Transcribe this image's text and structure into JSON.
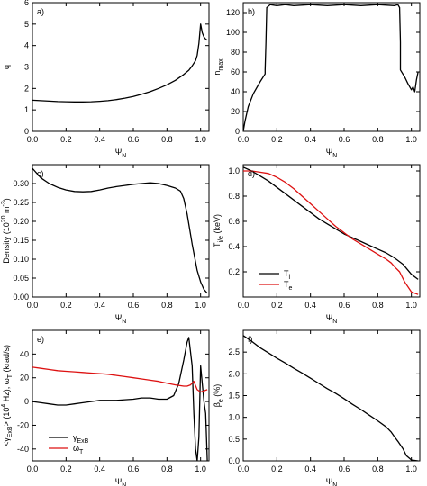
{
  "chart_data": [
    {
      "panel": "a)",
      "type": "line",
      "xlabel": "ΨN",
      "ylabel": "q",
      "xlim": [
        0,
        1.05
      ],
      "ylim": [
        0,
        6
      ],
      "xticks": [
        "0.0",
        "0.2",
        "0.4",
        "0.6",
        "0.8",
        "1.0"
      ],
      "yticks": [
        "0",
        "1",
        "2",
        "3",
        "4",
        "5",
        "6"
      ],
      "series": [
        {
          "color": "#000000",
          "x": [
            0,
            0.05,
            0.1,
            0.15,
            0.2,
            0.25,
            0.3,
            0.35,
            0.4,
            0.45,
            0.5,
            0.55,
            0.6,
            0.65,
            0.7,
            0.75,
            0.8,
            0.85,
            0.9,
            0.93,
            0.95,
            0.97,
            0.98,
            0.99,
            1.0,
            1.01,
            1.02,
            1.03,
            1.04
          ],
          "y": [
            1.45,
            1.43,
            1.41,
            1.39,
            1.38,
            1.37,
            1.37,
            1.38,
            1.4,
            1.43,
            1.48,
            1.55,
            1.63,
            1.73,
            1.85,
            2.0,
            2.17,
            2.38,
            2.65,
            2.85,
            3.05,
            3.3,
            3.55,
            4.1,
            5.0,
            4.6,
            4.4,
            4.3,
            4.25
          ]
        }
      ]
    },
    {
      "panel": "b)",
      "type": "line",
      "xlabel": "ΨN",
      "ylabel": "nmax",
      "xlim": [
        0,
        1.05
      ],
      "ylim": [
        0,
        130
      ],
      "xticks": [
        "0.0",
        "0.2",
        "0.4",
        "0.6",
        "0.8",
        "1.0"
      ],
      "yticks": [
        "0",
        "20",
        "40",
        "60",
        "80",
        "100",
        "120"
      ],
      "series": [
        {
          "color": "#000000",
          "x": [
            0,
            0.01,
            0.03,
            0.06,
            0.1,
            0.13,
            0.13,
            0.135,
            0.14,
            0.16,
            0.2,
            0.25,
            0.3,
            0.4,
            0.5,
            0.6,
            0.7,
            0.8,
            0.9,
            0.92,
            0.93,
            0.935,
            0.935,
            0.96,
            0.98,
            1.0,
            1.01,
            1.02,
            1.03,
            1.04
          ],
          "y": [
            0,
            10,
            25,
            38,
            50,
            58,
            62,
            90,
            125,
            128,
            127,
            128,
            127,
            128,
            127,
            128,
            127,
            128,
            127,
            128,
            125,
            90,
            62,
            55,
            48,
            42,
            45,
            40,
            52,
            60
          ]
        }
      ]
    },
    {
      "panel": "c)",
      "type": "line",
      "xlabel": "ΨN",
      "ylabel": "Density (10^20 m^-3)",
      "xlim": [
        0,
        1.05
      ],
      "ylim": [
        0,
        0.35
      ],
      "xticks": [
        "0.0",
        "0.2",
        "0.4",
        "0.6",
        "0.8",
        "1.0"
      ],
      "yticks": [
        "0.00",
        "0.05",
        "0.10",
        "0.15",
        "0.20",
        "0.25",
        "0.30"
      ],
      "series": [
        {
          "color": "#000000",
          "x": [
            0,
            0.05,
            0.1,
            0.15,
            0.2,
            0.25,
            0.3,
            0.35,
            0.4,
            0.45,
            0.5,
            0.55,
            0.6,
            0.65,
            0.7,
            0.75,
            0.8,
            0.85,
            0.88,
            0.9,
            0.92,
            0.95,
            0.98,
            1.0,
            1.02,
            1.04
          ],
          "y": [
            0.34,
            0.315,
            0.3,
            0.29,
            0.283,
            0.279,
            0.278,
            0.279,
            0.283,
            0.288,
            0.292,
            0.295,
            0.298,
            0.3,
            0.302,
            0.3,
            0.295,
            0.288,
            0.28,
            0.26,
            0.22,
            0.14,
            0.07,
            0.04,
            0.02,
            0.01
          ]
        }
      ]
    },
    {
      "panel": "d)",
      "type": "line",
      "xlabel": "ΨN",
      "ylabel": "Ti/e (keV)",
      "xlim": [
        0,
        1.05
      ],
      "ylim": [
        0,
        1.05
      ],
      "xticks": [
        "0.0",
        "0.2",
        "0.4",
        "0.6",
        "0.8",
        "1.0"
      ],
      "yticks": [
        "0.2",
        "0.4",
        "0.6",
        "0.8",
        "1.0"
      ],
      "legend": [
        "Ti",
        "Te"
      ],
      "series": [
        {
          "name": "Ti",
          "color": "#000000",
          "x": [
            0,
            0.05,
            0.1,
            0.15,
            0.2,
            0.25,
            0.3,
            0.35,
            0.4,
            0.45,
            0.5,
            0.55,
            0.6,
            0.65,
            0.7,
            0.75,
            0.8,
            0.85,
            0.9,
            0.95,
            1.0,
            1.04
          ],
          "y": [
            1.03,
            1.0,
            0.96,
            0.92,
            0.87,
            0.82,
            0.77,
            0.72,
            0.67,
            0.62,
            0.58,
            0.54,
            0.5,
            0.47,
            0.44,
            0.41,
            0.38,
            0.35,
            0.31,
            0.26,
            0.18,
            0.14
          ]
        },
        {
          "name": "Te",
          "color": "#dd1111",
          "x": [
            0,
            0.05,
            0.1,
            0.15,
            0.2,
            0.25,
            0.3,
            0.35,
            0.4,
            0.45,
            0.5,
            0.55,
            0.6,
            0.65,
            0.7,
            0.75,
            0.8,
            0.85,
            0.88,
            0.9,
            0.93,
            0.96,
            1.0,
            1.04
          ],
          "y": [
            1.0,
            1.0,
            0.99,
            0.98,
            0.95,
            0.91,
            0.86,
            0.8,
            0.74,
            0.68,
            0.62,
            0.56,
            0.51,
            0.46,
            0.42,
            0.38,
            0.34,
            0.3,
            0.27,
            0.24,
            0.2,
            0.12,
            0.04,
            0.02
          ]
        }
      ]
    },
    {
      "panel": "e)",
      "type": "line",
      "xlabel": "ΨN",
      "ylabel": "<γExB> (10^4 Hz), ωT (krad/s)",
      "xlim": [
        0,
        1.05
      ],
      "ylim": [
        -50,
        60
      ],
      "xticks": [
        "0.0",
        "0.2",
        "0.4",
        "0.6",
        "0.8",
        "1.0"
      ],
      "yticks": [
        "-40",
        "-20",
        "0",
        "20",
        "40"
      ],
      "legend": [
        "γExB",
        "ωT"
      ],
      "series": [
        {
          "name": "γExB",
          "color": "#000000",
          "x": [
            0,
            0.05,
            0.1,
            0.15,
            0.2,
            0.25,
            0.3,
            0.35,
            0.4,
            0.45,
            0.5,
            0.55,
            0.6,
            0.65,
            0.7,
            0.75,
            0.8,
            0.84,
            0.87,
            0.9,
            0.92,
            0.93,
            0.95,
            0.96,
            0.97,
            0.98,
            0.99,
            1.0,
            1.02,
            1.03,
            1.04
          ],
          "y": [
            0,
            -1,
            -2,
            -3,
            -3,
            -2,
            -1,
            0,
            1,
            1,
            1,
            1.5,
            2,
            3,
            3,
            2,
            2,
            5,
            15,
            35,
            50,
            54,
            30,
            -10,
            -40,
            -50,
            -30,
            30,
            0,
            -10,
            -50
          ]
        },
        {
          "name": "ωT",
          "color": "#dd1111",
          "x": [
            0,
            0.05,
            0.1,
            0.15,
            0.2,
            0.25,
            0.3,
            0.35,
            0.4,
            0.45,
            0.5,
            0.55,
            0.6,
            0.65,
            0.7,
            0.75,
            0.8,
            0.85,
            0.9,
            0.92,
            0.94,
            0.96,
            0.98,
            1.0,
            1.02,
            1.04
          ],
          "y": [
            29,
            28,
            27,
            26,
            25.5,
            25,
            24.5,
            24,
            23.5,
            23,
            22,
            21,
            20,
            19,
            18,
            17,
            15.5,
            14,
            13,
            13,
            14,
            17,
            10,
            8,
            9,
            10
          ]
        }
      ]
    },
    {
      "panel": "f)",
      "type": "line",
      "xlabel": "ΨN",
      "ylabel": "βe (%)",
      "xlim": [
        0,
        1.05
      ],
      "ylim": [
        0,
        3
      ],
      "xticks": [
        "0.0",
        "0.2",
        "0.4",
        "0.6",
        "0.8",
        "1.0"
      ],
      "yticks": [
        "0.0",
        "0.5",
        "1.0",
        "1.5",
        "2.0",
        "2.5"
      ],
      "series": [
        {
          "color": "#000000",
          "x": [
            0,
            0.05,
            0.1,
            0.15,
            0.2,
            0.25,
            0.3,
            0.35,
            0.4,
            0.45,
            0.5,
            0.55,
            0.6,
            0.65,
            0.7,
            0.75,
            0.8,
            0.85,
            0.88,
            0.9,
            0.92,
            0.95,
            0.97,
            1.0,
            1.04
          ],
          "y": [
            2.88,
            2.75,
            2.6,
            2.48,
            2.36,
            2.25,
            2.13,
            2.02,
            1.9,
            1.78,
            1.66,
            1.55,
            1.43,
            1.3,
            1.18,
            1.05,
            0.92,
            0.78,
            0.66,
            0.55,
            0.45,
            0.28,
            0.12,
            0.02,
            0.0
          ]
        }
      ]
    }
  ]
}
